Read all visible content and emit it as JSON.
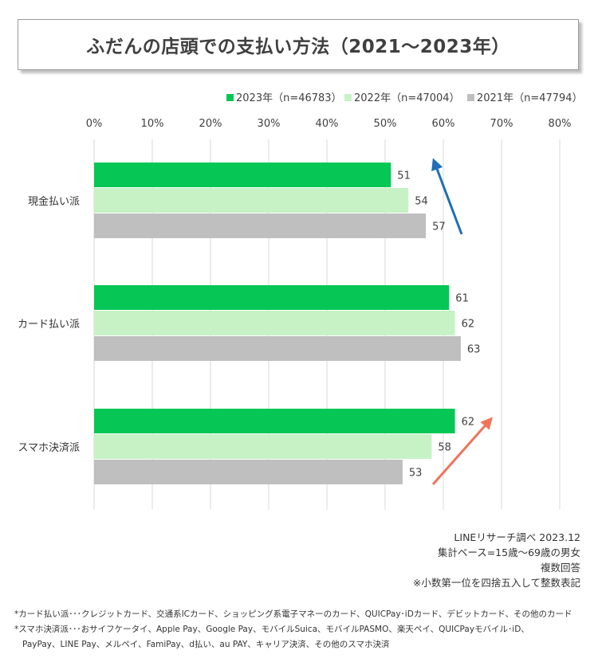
{
  "title": "ふだんの店頭での支払い方法（2021～2023年）",
  "chart_data": {
    "type": "bar",
    "orientation": "horizontal",
    "categories": [
      "現金払い派",
      "カード払い派",
      "スマホ決済派"
    ],
    "series": [
      {
        "name": "2023年（n=46783）",
        "color": "#06c755",
        "values": [
          51,
          61,
          62
        ]
      },
      {
        "name": "2022年（n=47004）",
        "color": "#c6f2c6",
        "values": [
          54,
          62,
          58
        ]
      },
      {
        "name": "2021年（n=47794）",
        "color": "#bfbfbf",
        "values": [
          57,
          63,
          53
        ]
      }
    ],
    "xlim": [
      0,
      80
    ],
    "xticks": [
      "0%",
      "10%",
      "20%",
      "30%",
      "40%",
      "50%",
      "60%",
      "70%",
      "80%"
    ],
    "legend_position": "top-right",
    "grid": true,
    "annotations": [
      {
        "type": "arrow",
        "category": "現金払い派",
        "direction": "up",
        "color": "#1f6fb6"
      },
      {
        "type": "arrow",
        "category": "スマホ決済派",
        "direction": "up",
        "color": "#f0735a"
      }
    ]
  },
  "source": {
    "line1": "LINEリサーチ調べ 2023.12",
    "line2": "集計ベース=15歳～69歳の男女",
    "line3": "複数回答",
    "line4": "※小数第一位を四捨五入して整数表記"
  },
  "notes": {
    "line1": "*カード払い派･･･クレジットカード、交通系ICカード、ショッピング系電子マネーのカード、QUICPay･iDカード、デビットカード、その他のカード",
    "line2": "*スマホ決済派･･･おサイフケータイ、Apple Pay、Google Pay、モバイルSuica、モバイルPASMO、楽天ペイ、QUICPayモバイル･iD、",
    "line3": "PayPay、LINE Pay、メルペイ、FamiPay、d払い、au PAY、キャリア決済、その他のスマホ決済"
  }
}
